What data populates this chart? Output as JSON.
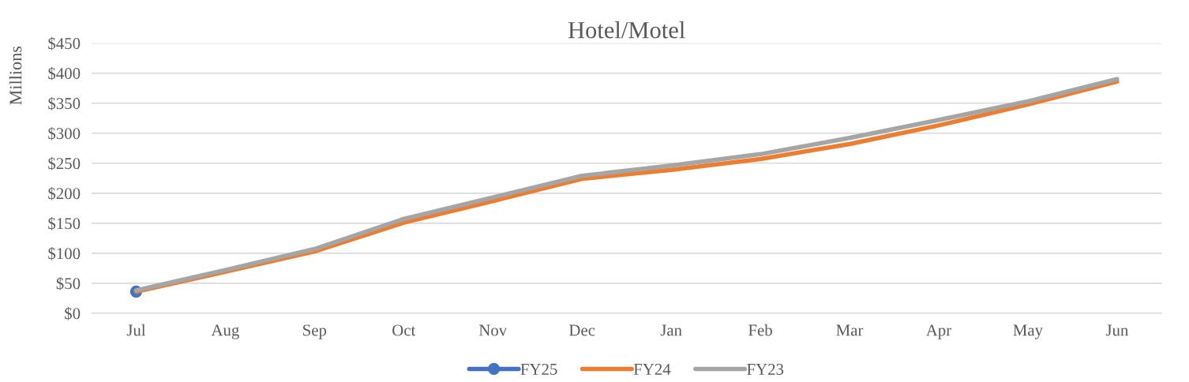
{
  "chart_data": {
    "type": "line",
    "title": "Hotel/Motel",
    "ylabel": "Millions",
    "categories": [
      "Jul",
      "Aug",
      "Sep",
      "Oct",
      "Nov",
      "Dec",
      "Jan",
      "Feb",
      "Mar",
      "Apr",
      "May",
      "Jun"
    ],
    "series": [
      {
        "name": "FY25",
        "color": "#4472c4",
        "marker": "circle",
        "values": [
          36,
          null,
          null,
          null,
          null,
          null,
          null,
          null,
          null,
          null,
          null,
          null
        ]
      },
      {
        "name": "FY24",
        "color": "#ed7d31",
        "marker": "none",
        "values": [
          36,
          69,
          103,
          151,
          187,
          224,
          239,
          257,
          282,
          313,
          348,
          386
        ]
      },
      {
        "name": "FY23",
        "color": "#a5a5a5",
        "marker": "none",
        "values": [
          38,
          72,
          107,
          157,
          193,
          229,
          246,
          265,
          292,
          322,
          353,
          390
        ]
      }
    ],
    "ylim": [
      0,
      450
    ],
    "yticks": [
      {
        "value": 0,
        "label": "$0"
      },
      {
        "value": 50,
        "label": "$50"
      },
      {
        "value": 100,
        "label": "$100"
      },
      {
        "value": 150,
        "label": "$150"
      },
      {
        "value": 200,
        "label": "$200"
      },
      {
        "value": 250,
        "label": "$250"
      },
      {
        "value": 300,
        "label": "$300"
      },
      {
        "value": 350,
        "label": "$350"
      },
      {
        "value": 400,
        "label": "$400"
      },
      {
        "value": 450,
        "label": "$450"
      }
    ],
    "grid": "y",
    "legend": "bottom",
    "line_style": "solid"
  }
}
